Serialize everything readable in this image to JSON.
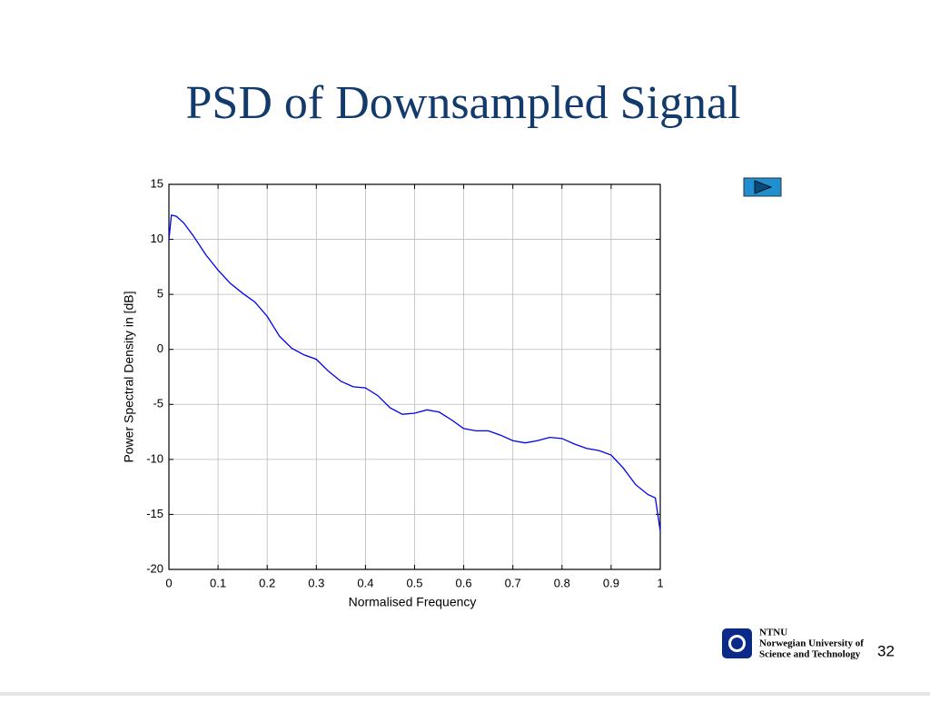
{
  "chart_data": {
    "type": "line",
    "title": "PSD of Downsampled Signal",
    "xlabel": "Normalised Frequency",
    "ylabel": "Power Spectral Density in [dB]",
    "x": [
      0,
      0.005,
      0.015,
      0.03,
      0.05,
      0.075,
      0.1,
      0.125,
      0.15,
      0.175,
      0.2,
      0.225,
      0.25,
      0.275,
      0.3,
      0.325,
      0.35,
      0.375,
      0.4,
      0.425,
      0.45,
      0.475,
      0.5,
      0.525,
      0.55,
      0.575,
      0.6,
      0.625,
      0.65,
      0.675,
      0.7,
      0.725,
      0.75,
      0.775,
      0.8,
      0.825,
      0.85,
      0.875,
      0.9,
      0.925,
      0.95,
      0.975,
      0.99,
      0.995,
      1
    ],
    "values": [
      10,
      12.2,
      12.1,
      11.5,
      10.3,
      8.6,
      7.2,
      6,
      5.1,
      4.3,
      3.0,
      1.2,
      0.1,
      -0.5,
      -0.9,
      -2,
      -2.9,
      -3.4,
      -3.5,
      -4.2,
      -5.3,
      -5.9,
      -5.8,
      -5.5,
      -5.7,
      -6.4,
      -7.2,
      -7.4,
      -7.4,
      -7.8,
      -8.3,
      -8.5,
      -8.3,
      -8,
      -8.1,
      -8.6,
      -9,
      -9.2,
      -9.6,
      -10.8,
      -12.3,
      -13.2,
      -13.5,
      -15,
      -16.5
    ],
    "color": "#0000ee",
    "xlim": [
      0,
      1
    ],
    "xticks": [
      0,
      0.1,
      0.2,
      0.3,
      0.4,
      0.5,
      0.6,
      0.7,
      0.8,
      0.9,
      1
    ],
    "ylim": [
      -20,
      15
    ],
    "yticks": [
      -20,
      -15,
      -10,
      -5,
      0,
      5,
      10,
      15
    ],
    "grid": true
  },
  "footer": {
    "logo_name": "NTNU",
    "logo_line1": "Norwegian University of",
    "logo_line2": "Science and Technology",
    "page_number": "32"
  }
}
